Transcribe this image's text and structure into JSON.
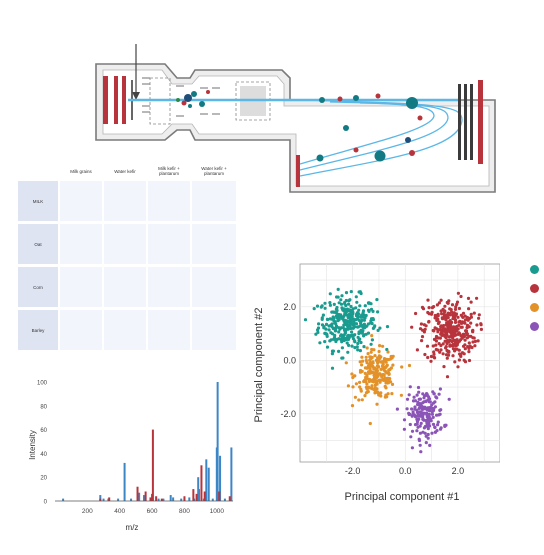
{
  "instrument": {
    "colors": {
      "teal": "#127a82",
      "red": "#b8343c",
      "navy": "#1f4e79",
      "beam": "#5bb7e6"
    }
  },
  "table": {
    "columns": [
      "Milk grains",
      "Water kefir",
      "Milk kefir + plantarum",
      "Water kefir + plantarum"
    ],
    "rows": [
      "MILK",
      "Oat",
      "Corn",
      "Barley"
    ]
  },
  "chart_data": [
    {
      "type": "bar",
      "title": "",
      "xlabel": "m/z",
      "ylabel": "Intensity",
      "xlim": [
        0,
        1100
      ],
      "ylim": [
        0,
        100
      ],
      "xticks": [
        "200",
        "400",
        "600",
        "800",
        "1000"
      ],
      "yticks": [
        "0",
        "20",
        "40",
        "60",
        "80",
        "100"
      ],
      "series": [
        {
          "color": "#3c86c6",
          "points": [
            [
              50,
              2
            ],
            [
              280,
              5
            ],
            [
              300,
              2
            ],
            [
              330,
              2
            ],
            [
              390,
              2
            ],
            [
              430,
              32
            ],
            [
              470,
              2
            ],
            [
              520,
              7
            ],
            [
              550,
              5
            ],
            [
              640,
              2
            ],
            [
              670,
              2
            ],
            [
              715,
              5
            ],
            [
              730,
              3
            ],
            [
              780,
              2
            ],
            [
              800,
              2
            ],
            [
              830,
              3
            ],
            [
              860,
              2
            ],
            [
              885,
              20
            ],
            [
              890,
              10
            ],
            [
              920,
              2
            ],
            [
              935,
              35
            ],
            [
              950,
              28
            ],
            [
              975,
              2
            ],
            [
              1000,
              45
            ],
            [
              1005,
              100
            ],
            [
              1020,
              38
            ],
            [
              1050,
              2
            ],
            [
              1090,
              45
            ]
          ]
        },
        {
          "color": "#b8343c",
          "points": [
            [
              280,
              2
            ],
            [
              335,
              3
            ],
            [
              510,
              12
            ],
            [
              560,
              8
            ],
            [
              590,
              3
            ],
            [
              600,
              6
            ],
            [
              605,
              60
            ],
            [
              625,
              4
            ],
            [
              660,
              2
            ],
            [
              800,
              4
            ],
            [
              855,
              10
            ],
            [
              875,
              6
            ],
            [
              905,
              30
            ],
            [
              925,
              8
            ],
            [
              1015,
              8
            ],
            [
              1080,
              4
            ]
          ]
        }
      ]
    },
    {
      "type": "scatter",
      "title": "",
      "xlabel": "Principal component #1",
      "ylabel": "Principal component #2",
      "xlim": [
        -4.0,
        3.6
      ],
      "ylim": [
        -3.8,
        3.6
      ],
      "xticks": [
        "-2.0",
        "0.0",
        "2.0"
      ],
      "yticks": [
        "2.0",
        "0.0",
        "-2.0"
      ],
      "grid": true,
      "legend": "top-right",
      "series": [
        {
          "color": "#1a9b8f",
          "center": [
            -2.2,
            1.4
          ],
          "spread": [
            0.55,
            0.5
          ],
          "count": 320
        },
        {
          "color": "#e3922a",
          "center": [
            -1.1,
            -0.55
          ],
          "spread": [
            0.4,
            0.45
          ],
          "count": 230
        },
        {
          "color": "#b8343c",
          "center": [
            1.7,
            1.1
          ],
          "spread": [
            0.5,
            0.6
          ],
          "count": 330
        },
        {
          "color": "#8b55b7",
          "center": [
            0.75,
            -2.0
          ],
          "spread": [
            0.35,
            0.45
          ],
          "count": 180
        }
      ]
    }
  ]
}
